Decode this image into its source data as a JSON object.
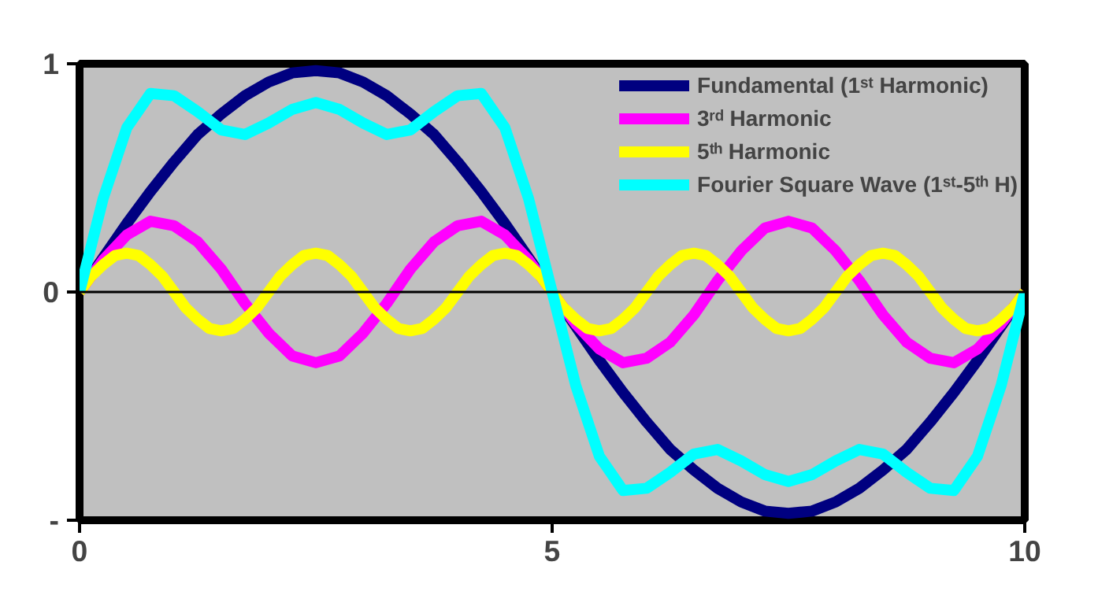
{
  "chart_data": {
    "type": "line",
    "x": [
      0,
      0.25,
      0.5,
      0.75,
      1,
      1.25,
      1.5,
      1.75,
      2,
      2.25,
      2.5,
      2.75,
      3,
      3.25,
      3.5,
      3.75,
      4,
      4.25,
      4.5,
      4.75,
      5,
      5.25,
      5.5,
      5.75,
      6,
      6.25,
      6.5,
      6.75,
      7,
      7.25,
      7.5,
      7.75,
      8,
      8.25,
      8.5,
      8.75,
      9,
      9.25,
      9.5,
      9.75,
      10
    ],
    "series": [
      {
        "name": "Fundamental (1ˢᵗ Harmonic)",
        "color": "#000080",
        "values": [
          0,
          0.15,
          0.3,
          0.44,
          0.57,
          0.69,
          0.78,
          0.86,
          0.92,
          0.96,
          0.97,
          0.96,
          0.92,
          0.86,
          0.78,
          0.69,
          0.57,
          0.44,
          0.3,
          0.15,
          0,
          -0.15,
          -0.3,
          -0.44,
          -0.57,
          -0.69,
          -0.78,
          -0.86,
          -0.92,
          -0.96,
          -0.97,
          -0.96,
          -0.92,
          -0.86,
          -0.78,
          -0.69,
          -0.57,
          -0.44,
          -0.3,
          -0.15,
          0
        ]
      },
      {
        "name": "3ʳᵈ Harmonic",
        "color": "#ff00ff",
        "values": [
          0,
          0.14,
          0.25,
          0.31,
          0.29,
          0.22,
          0.1,
          -0.05,
          -0.18,
          -0.28,
          -0.31,
          -0.28,
          -0.18,
          -0.05,
          0.1,
          0.22,
          0.29,
          0.31,
          0.25,
          0.14,
          0,
          -0.14,
          -0.25,
          -0.31,
          -0.29,
          -0.22,
          -0.1,
          0.05,
          0.18,
          0.28,
          0.31,
          0.28,
          0.18,
          0.05,
          -0.1,
          -0.22,
          -0.29,
          -0.31,
          -0.25,
          -0.14,
          0
        ]
      },
      {
        "name": "5ᵗʰ Harmonic",
        "color": "#ffff00",
        "x": [
          0,
          0.125,
          0.25,
          0.375,
          0.5,
          0.625,
          0.75,
          0.875,
          1,
          1.125,
          1.25,
          1.375,
          1.5,
          1.625,
          1.75,
          1.875,
          2,
          2.125,
          2.25,
          2.375,
          2.5,
          2.625,
          2.75,
          2.875,
          3,
          3.125,
          3.25,
          3.375,
          3.5,
          3.625,
          3.75,
          3.875,
          4,
          4.125,
          4.25,
          4.375,
          4.5,
          4.625,
          4.75,
          4.875,
          5,
          5.125,
          5.25,
          5.375,
          5.5,
          5.625,
          5.75,
          5.875,
          6,
          6.125,
          6.25,
          6.375,
          6.5,
          6.625,
          6.75,
          6.875,
          7,
          7.125,
          7.25,
          7.375,
          7.5,
          7.625,
          7.75,
          7.875,
          8,
          8.125,
          8.25,
          8.375,
          8.5,
          8.625,
          8.75,
          8.875,
          9,
          9.125,
          9.25,
          9.375,
          9.5,
          9.625,
          9.75,
          9.875,
          10
        ],
        "values": [
          0,
          0.07,
          0.12,
          0.16,
          0.17,
          0.16,
          0.12,
          0.07,
          0,
          -0.07,
          -0.12,
          -0.16,
          -0.17,
          -0.16,
          -0.12,
          -0.07,
          0,
          0.07,
          0.12,
          0.16,
          0.17,
          0.16,
          0.12,
          0.07,
          0,
          -0.07,
          -0.12,
          -0.16,
          -0.17,
          -0.16,
          -0.12,
          -0.07,
          0,
          0.07,
          0.12,
          0.16,
          0.17,
          0.16,
          0.12,
          0.07,
          0,
          -0.07,
          -0.12,
          -0.16,
          -0.17,
          -0.16,
          -0.12,
          -0.07,
          0,
          0.07,
          0.12,
          0.16,
          0.17,
          0.16,
          0.12,
          0.07,
          0,
          -0.07,
          -0.12,
          -0.16,
          -0.17,
          -0.16,
          -0.12,
          -0.07,
          0,
          0.07,
          0.12,
          0.16,
          0.17,
          0.16,
          0.12,
          0.07,
          0,
          -0.07,
          -0.12,
          -0.16,
          -0.17,
          -0.16,
          -0.12,
          -0.07,
          0
        ]
      },
      {
        "name": "Fourier Square Wave (1ˢᵗ-5ᵗʰ H)",
        "color": "#00ffff",
        "values": [
          0,
          0.41,
          0.72,
          0.87,
          0.86,
          0.79,
          0.71,
          0.69,
          0.74,
          0.8,
          0.83,
          0.8,
          0.74,
          0.69,
          0.71,
          0.79,
          0.86,
          0.87,
          0.72,
          0.41,
          0,
          -0.41,
          -0.72,
          -0.87,
          -0.86,
          -0.79,
          -0.71,
          -0.69,
          -0.74,
          -0.8,
          -0.83,
          -0.8,
          -0.74,
          -0.69,
          -0.71,
          -0.79,
          -0.86,
          -0.87,
          -0.72,
          -0.41,
          0
        ]
      }
    ],
    "xlim": [
      0,
      10
    ],
    "ylim": [
      -1,
      1
    ],
    "xticks": [
      0,
      5,
      10
    ],
    "yticks": [
      {
        "value": -1,
        "label": "-"
      },
      0,
      1
    ],
    "ref_lines": [
      {
        "axis": "y",
        "value": 0,
        "color": "#000000"
      }
    ],
    "grid": false,
    "legend": "top right",
    "marker": "none",
    "line_style": "solid"
  }
}
